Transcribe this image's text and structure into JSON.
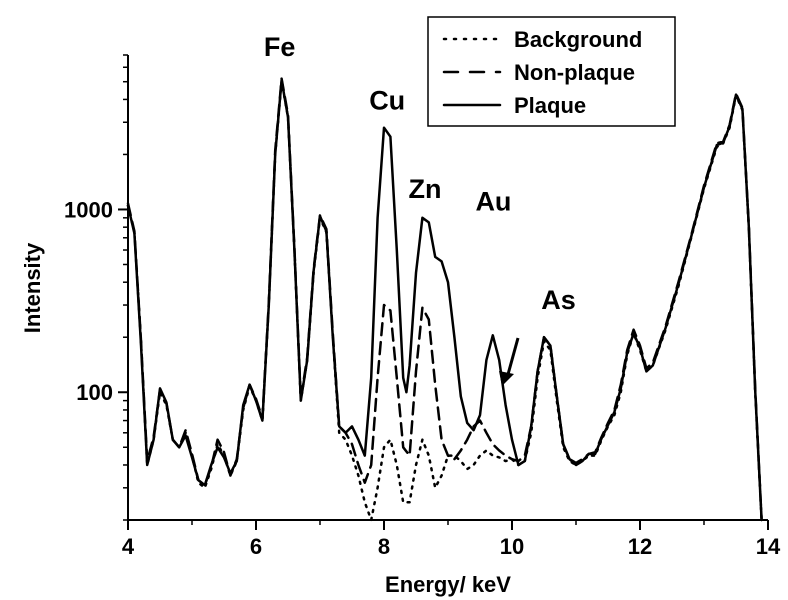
{
  "chart_data": {
    "type": "line",
    "xlabel": "Energy/ keV",
    "ylabel": "Intensity",
    "xlim": [
      4,
      14
    ],
    "ylim": [
      20,
      7000
    ],
    "yscale": "log",
    "grid": false,
    "legend_position": "top-right",
    "x_ticks": [
      4,
      6,
      8,
      10,
      12,
      14
    ],
    "y_ticks": [
      100,
      1000
    ],
    "annotations": [
      {
        "text": "Fe",
        "x": 6.4
      },
      {
        "text": "Cu",
        "x": 8.05
      },
      {
        "text": "Zn",
        "x": 8.64
      },
      {
        "text": "Au",
        "x": 9.71
      },
      {
        "text": "As",
        "x": 10.54
      }
    ],
    "series": [
      {
        "name": "Background",
        "style": "dotted",
        "points": [
          [
            4.0,
            1050
          ],
          [
            4.1,
            750
          ],
          [
            4.2,
            200
          ],
          [
            4.3,
            40
          ],
          [
            4.4,
            55
          ],
          [
            4.5,
            100
          ],
          [
            4.6,
            85
          ],
          [
            4.7,
            55
          ],
          [
            4.8,
            50
          ],
          [
            4.9,
            60
          ],
          [
            5.0,
            45
          ],
          [
            5.1,
            32
          ],
          [
            5.2,
            30
          ],
          [
            5.3,
            38
          ],
          [
            5.4,
            52
          ],
          [
            5.5,
            45
          ],
          [
            5.6,
            35
          ],
          [
            5.7,
            42
          ],
          [
            5.8,
            80
          ],
          [
            5.9,
            108
          ],
          [
            6.0,
            90
          ],
          [
            6.1,
            70
          ],
          [
            6.2,
            300
          ],
          [
            6.3,
            2000
          ],
          [
            6.4,
            5000
          ],
          [
            6.5,
            3200
          ],
          [
            6.6,
            600
          ],
          [
            6.7,
            90
          ],
          [
            6.8,
            150
          ],
          [
            6.9,
            450
          ],
          [
            7.0,
            900
          ],
          [
            7.1,
            750
          ],
          [
            7.2,
            200
          ],
          [
            7.3,
            60
          ],
          [
            7.4,
            55
          ],
          [
            7.5,
            45
          ],
          [
            7.6,
            35
          ],
          [
            7.7,
            25
          ],
          [
            7.8,
            20
          ],
          [
            7.9,
            30
          ],
          [
            8.0,
            50
          ],
          [
            8.1,
            55
          ],
          [
            8.2,
            40
          ],
          [
            8.3,
            25
          ],
          [
            8.4,
            25
          ],
          [
            8.5,
            40
          ],
          [
            8.6,
            55
          ],
          [
            8.7,
            45
          ],
          [
            8.8,
            30
          ],
          [
            8.9,
            35
          ],
          [
            9.0,
            45
          ],
          [
            9.1,
            45
          ],
          [
            9.2,
            42
          ],
          [
            9.3,
            38
          ],
          [
            9.4,
            40
          ],
          [
            9.5,
            45
          ],
          [
            9.6,
            48
          ],
          [
            9.7,
            45
          ],
          [
            9.8,
            44
          ],
          [
            9.9,
            42
          ],
          [
            10.0,
            43
          ],
          [
            10.1,
            40
          ],
          [
            10.2,
            42
          ],
          [
            10.3,
            60
          ],
          [
            10.4,
            120
          ],
          [
            10.5,
            190
          ],
          [
            10.6,
            170
          ],
          [
            10.7,
            90
          ],
          [
            10.8,
            50
          ],
          [
            10.9,
            42
          ],
          [
            11.0,
            40
          ],
          [
            11.1,
            42
          ],
          [
            11.2,
            45
          ],
          [
            11.3,
            45
          ],
          [
            11.4,
            55
          ],
          [
            11.5,
            65
          ],
          [
            11.6,
            75
          ],
          [
            11.7,
            100
          ],
          [
            11.8,
            160
          ],
          [
            11.9,
            210
          ],
          [
            12.0,
            170
          ],
          [
            12.1,
            130
          ],
          [
            12.2,
            140
          ],
          [
            12.4,
            220
          ],
          [
            12.6,
            380
          ],
          [
            12.8,
            700
          ],
          [
            13.0,
            1300
          ],
          [
            13.2,
            2200
          ],
          [
            13.3,
            2300
          ],
          [
            13.4,
            2800
          ],
          [
            13.5,
            4200
          ],
          [
            13.6,
            3500
          ],
          [
            13.7,
            800
          ],
          [
            13.8,
            100
          ],
          [
            13.9,
            20
          ]
        ]
      },
      {
        "name": "Non-plaque",
        "style": "dashed",
        "points": [
          [
            4.0,
            1080
          ],
          [
            4.1,
            760
          ],
          [
            4.2,
            200
          ],
          [
            4.3,
            42
          ],
          [
            4.4,
            57
          ],
          [
            4.5,
            103
          ],
          [
            4.6,
            87
          ],
          [
            4.7,
            55
          ],
          [
            4.8,
            50
          ],
          [
            4.9,
            62
          ],
          [
            5.0,
            46
          ],
          [
            5.1,
            33
          ],
          [
            5.2,
            31
          ],
          [
            5.3,
            39
          ],
          [
            5.4,
            55
          ],
          [
            5.5,
            47
          ],
          [
            5.6,
            35
          ],
          [
            5.7,
            43
          ],
          [
            5.8,
            82
          ],
          [
            5.9,
            110
          ],
          [
            6.0,
            92
          ],
          [
            6.1,
            72
          ],
          [
            6.2,
            310
          ],
          [
            6.3,
            2100
          ],
          [
            6.4,
            5200
          ],
          [
            6.5,
            3300
          ],
          [
            6.6,
            620
          ],
          [
            6.7,
            92
          ],
          [
            6.8,
            155
          ],
          [
            6.9,
            470
          ],
          [
            7.0,
            930
          ],
          [
            7.1,
            780
          ],
          [
            7.2,
            210
          ],
          [
            7.3,
            65
          ],
          [
            7.4,
            60
          ],
          [
            7.5,
            52
          ],
          [
            7.6,
            40
          ],
          [
            7.7,
            32
          ],
          [
            7.8,
            40
          ],
          [
            7.9,
            120
          ],
          [
            8.0,
            300
          ],
          [
            8.1,
            280
          ],
          [
            8.2,
            120
          ],
          [
            8.3,
            50
          ],
          [
            8.4,
            45
          ],
          [
            8.5,
            130
          ],
          [
            8.6,
            290
          ],
          [
            8.7,
            250
          ],
          [
            8.8,
            110
          ],
          [
            8.9,
            55
          ],
          [
            9.0,
            45
          ],
          [
            9.1,
            43
          ],
          [
            9.2,
            48
          ],
          [
            9.3,
            55
          ],
          [
            9.4,
            65
          ],
          [
            9.5,
            70
          ],
          [
            9.6,
            60
          ],
          [
            9.7,
            52
          ],
          [
            9.8,
            48
          ],
          [
            9.9,
            45
          ],
          [
            10.0,
            43
          ],
          [
            10.1,
            42
          ],
          [
            10.2,
            45
          ],
          [
            10.3,
            65
          ],
          [
            10.4,
            130
          ],
          [
            10.5,
            200
          ],
          [
            10.6,
            180
          ],
          [
            10.7,
            95
          ],
          [
            10.8,
            52
          ],
          [
            10.9,
            43
          ],
          [
            11.0,
            41
          ],
          [
            11.1,
            43
          ],
          [
            11.2,
            46
          ],
          [
            11.3,
            47
          ],
          [
            11.4,
            57
          ],
          [
            11.5,
            68
          ],
          [
            11.6,
            80
          ],
          [
            11.7,
            110
          ],
          [
            11.8,
            170
          ],
          [
            11.9,
            220
          ],
          [
            12.0,
            180
          ],
          [
            12.1,
            135
          ],
          [
            12.2,
            145
          ],
          [
            12.4,
            230
          ],
          [
            12.6,
            400
          ],
          [
            12.8,
            720
          ],
          [
            13.0,
            1350
          ],
          [
            13.2,
            2300
          ],
          [
            13.3,
            2350
          ],
          [
            13.4,
            2900
          ],
          [
            13.5,
            4300
          ],
          [
            13.6,
            3600
          ],
          [
            13.7,
            820
          ],
          [
            13.8,
            105
          ],
          [
            13.9,
            20
          ]
        ]
      },
      {
        "name": "Plaque",
        "style": "solid",
        "points": [
          [
            4.0,
            1050
          ],
          [
            4.1,
            740
          ],
          [
            4.2,
            190
          ],
          [
            4.3,
            40
          ],
          [
            4.4,
            55
          ],
          [
            4.5,
            105
          ],
          [
            4.6,
            88
          ],
          [
            4.7,
            55
          ],
          [
            4.8,
            50
          ],
          [
            4.9,
            58
          ],
          [
            5.0,
            44
          ],
          [
            5.1,
            33
          ],
          [
            5.2,
            31
          ],
          [
            5.3,
            40
          ],
          [
            5.4,
            50
          ],
          [
            5.5,
            44
          ],
          [
            5.6,
            36
          ],
          [
            5.7,
            42
          ],
          [
            5.8,
            85
          ],
          [
            5.9,
            110
          ],
          [
            6.0,
            90
          ],
          [
            6.1,
            70
          ],
          [
            6.2,
            300
          ],
          [
            6.3,
            2000
          ],
          [
            6.4,
            5100
          ],
          [
            6.5,
            3200
          ],
          [
            6.6,
            600
          ],
          [
            6.7,
            90
          ],
          [
            6.8,
            150
          ],
          [
            6.9,
            460
          ],
          [
            7.0,
            920
          ],
          [
            7.1,
            760
          ],
          [
            7.2,
            200
          ],
          [
            7.3,
            65
          ],
          [
            7.4,
            60
          ],
          [
            7.5,
            65
          ],
          [
            7.6,
            55
          ],
          [
            7.7,
            45
          ],
          [
            7.8,
            120
          ],
          [
            7.9,
            900
          ],
          [
            8.0,
            2800
          ],
          [
            8.1,
            2500
          ],
          [
            8.2,
            600
          ],
          [
            8.3,
            120
          ],
          [
            8.35,
            100
          ],
          [
            8.4,
            140
          ],
          [
            8.5,
            450
          ],
          [
            8.6,
            900
          ],
          [
            8.7,
            850
          ],
          [
            8.8,
            550
          ],
          [
            8.9,
            520
          ],
          [
            9.0,
            400
          ],
          [
            9.1,
            200
          ],
          [
            9.2,
            95
          ],
          [
            9.3,
            68
          ],
          [
            9.4,
            62
          ],
          [
            9.5,
            75
          ],
          [
            9.6,
            150
          ],
          [
            9.7,
            205
          ],
          [
            9.8,
            150
          ],
          [
            9.9,
            85
          ],
          [
            10.0,
            55
          ],
          [
            10.1,
            40
          ],
          [
            10.2,
            42
          ],
          [
            10.3,
            65
          ],
          [
            10.4,
            130
          ],
          [
            10.5,
            200
          ],
          [
            10.6,
            180
          ],
          [
            10.7,
            95
          ],
          [
            10.8,
            52
          ],
          [
            10.9,
            43
          ],
          [
            11.0,
            40
          ],
          [
            11.1,
            42
          ],
          [
            11.2,
            46
          ],
          [
            11.3,
            46
          ],
          [
            11.4,
            56
          ],
          [
            11.5,
            66
          ],
          [
            11.6,
            78
          ],
          [
            11.7,
            105
          ],
          [
            11.8,
            165
          ],
          [
            11.9,
            210
          ],
          [
            12.0,
            175
          ],
          [
            12.1,
            130
          ],
          [
            12.2,
            140
          ],
          [
            12.4,
            225
          ],
          [
            12.6,
            390
          ],
          [
            12.8,
            710
          ],
          [
            13.0,
            1320
          ],
          [
            13.2,
            2250
          ],
          [
            13.3,
            2320
          ],
          [
            13.4,
            2850
          ],
          [
            13.5,
            4250
          ],
          [
            13.6,
            3550
          ],
          [
            13.7,
            810
          ],
          [
            13.8,
            102
          ],
          [
            13.9,
            20
          ]
        ]
      }
    ]
  }
}
